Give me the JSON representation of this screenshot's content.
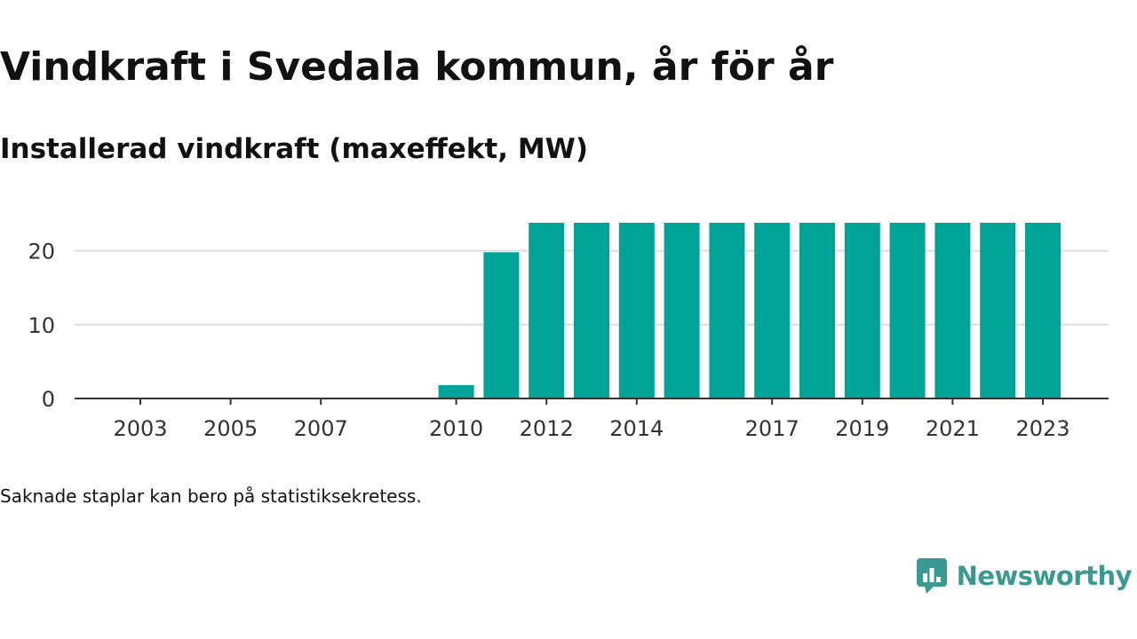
{
  "header": {
    "title": "Vindkraft i Svedala kommun, år för år",
    "subtitle": "Installerad vindkraft (maxeffekt, MW)"
  },
  "footer": {
    "note": "Saknade staplar kan bero på statistiksekretess.",
    "brand_name": "Newsworthy",
    "brand_icon": "newsworthy-logo-icon"
  },
  "colors": {
    "bar": "#00a398",
    "grid": "#dddddd",
    "axis": "#333333",
    "brand": "#3a9a92"
  },
  "chart_data": {
    "type": "bar",
    "title": "Vindkraft i Svedala kommun, år för år",
    "subtitle": "Installerad vindkraft (maxeffekt, MW)",
    "xlabel": "",
    "ylabel": "",
    "categories": [
      2002,
      2003,
      2004,
      2005,
      2006,
      2007,
      2008,
      2009,
      2010,
      2011,
      2012,
      2013,
      2014,
      2015,
      2016,
      2017,
      2018,
      2019,
      2020,
      2021,
      2022,
      2023
    ],
    "values": [
      null,
      null,
      null,
      null,
      null,
      null,
      null,
      null,
      1.8,
      19.8,
      23.8,
      23.8,
      23.8,
      23.8,
      23.8,
      23.8,
      23.8,
      23.8,
      23.8,
      23.8,
      23.8,
      23.8
    ],
    "x_tick_labels": [
      "2003",
      "2005",
      "2007",
      "2010",
      "2012",
      "2014",
      "2017",
      "2019",
      "2021",
      "2023"
    ],
    "y_ticks": [
      0,
      10,
      20
    ],
    "ylim": [
      0,
      25
    ],
    "grid": true,
    "legend": "none"
  }
}
